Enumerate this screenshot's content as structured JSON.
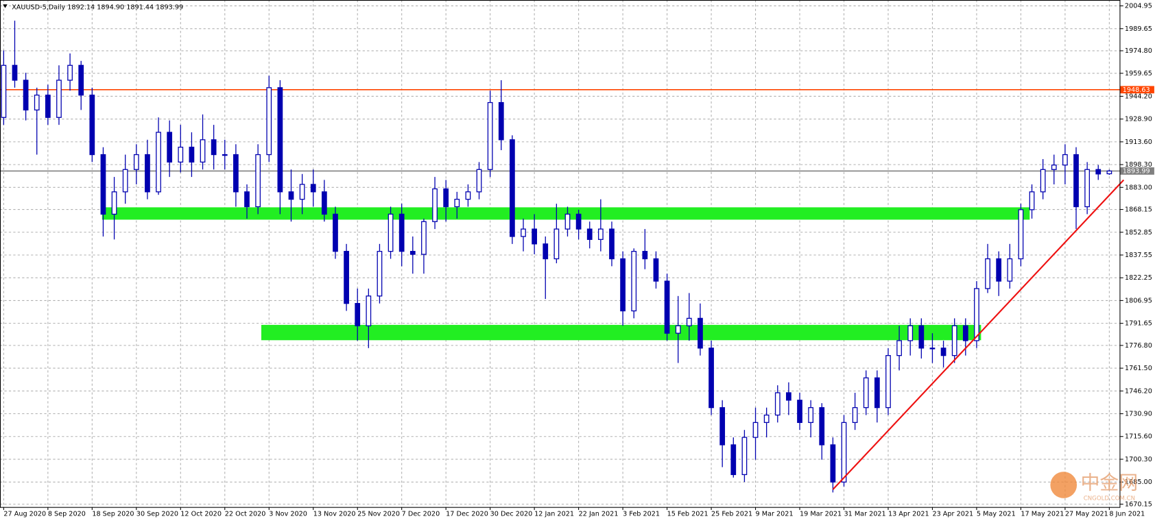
{
  "chart_data": {
    "type": "candlestick",
    "title": "XAUUSD-5,Daily  1892.14 1894.90 1891.44 1893.99",
    "bull_color": "#ffffff",
    "bear_color": "#0000b0",
    "wick_color": "#0000b0",
    "grid": true,
    "ylim": [
      1668.2,
      2008.9
    ],
    "yticks": [
      {
        "value": 2004.95,
        "label": "2004.95"
      },
      {
        "value": 1989.65,
        "label": "1989.65"
      },
      {
        "value": 1974.8,
        "label": "1974.80"
      },
      {
        "value": 1959.65,
        "label": "1959.65"
      },
      {
        "value": 1944.2,
        "label": "1944.20"
      },
      {
        "value": 1928.9,
        "label": "1928.90"
      },
      {
        "value": 1913.6,
        "label": "1913.60"
      },
      {
        "value": 1898.3,
        "label": "1898.30"
      },
      {
        "value": 1883,
        "label": "1883.00"
      },
      {
        "value": 1868.15,
        "label": "1868.15"
      },
      {
        "value": 1852.85,
        "label": "1852.85"
      },
      {
        "value": 1837.55,
        "label": "1837.55"
      },
      {
        "value": 1822.25,
        "label": "1822.25"
      },
      {
        "value": 1806.95,
        "label": "1806.95"
      },
      {
        "value": 1791.65,
        "label": "1791.65"
      },
      {
        "value": 1776.8,
        "label": "1776.80"
      },
      {
        "value": 1761.5,
        "label": "1761.50"
      },
      {
        "value": 1746.2,
        "label": "1746.20"
      },
      {
        "value": 1730.9,
        "label": "1730.90"
      },
      {
        "value": 1715.6,
        "label": "1715.60"
      },
      {
        "value": 1700.3,
        "label": "1700.30"
      },
      {
        "value": 1685,
        "label": "1685.00"
      },
      {
        "value": 1670.15,
        "label": "1670.15"
      }
    ],
    "categories": [
      "27 Aug 2020",
      null,
      null,
      null,
      "8 Sep 2020",
      null,
      null,
      null,
      "18 Sep 2020",
      null,
      null,
      null,
      "30 Sep 2020",
      null,
      null,
      null,
      "12 Oct 2020",
      null,
      null,
      null,
      "22 Oct 2020",
      null,
      null,
      null,
      "3 Nov 2020",
      null,
      null,
      null,
      "13 Nov 2020",
      null,
      null,
      null,
      "25 Nov 2020",
      null,
      null,
      null,
      "7 Dec 2020",
      null,
      null,
      null,
      "17 Dec 2020",
      null,
      null,
      null,
      "30 Dec 2020",
      null,
      null,
      null,
      "12 Jan 2021",
      null,
      null,
      null,
      "22 Jan 2021",
      null,
      null,
      null,
      "3 Feb 2021",
      null,
      null,
      null,
      "15 Feb 2021",
      null,
      null,
      null,
      "25 Feb 2021",
      null,
      null,
      null,
      "9 Mar 2021",
      null,
      null,
      null,
      "19 Mar 2021",
      null,
      null,
      null,
      "31 Mar 2021",
      null,
      null,
      null,
      "13 Apr 2021",
      null,
      null,
      null,
      "23 Apr 2021",
      null,
      null,
      null,
      "5 May 2021",
      null,
      null,
      null,
      "17 May 2021",
      null,
      null,
      null,
      "27 May 2021",
      null,
      null,
      null,
      "8 Jun 2021"
    ],
    "ohlc": [
      [
        1930,
        1975,
        1925,
        1965
      ],
      [
        1965,
        1995,
        1950,
        1955
      ],
      [
        1955,
        1960,
        1928,
        1935
      ],
      [
        1935,
        1950,
        1905,
        1945
      ],
      [
        1945,
        1952,
        1925,
        1930
      ],
      [
        1930,
        1965,
        1925,
        1955
      ],
      [
        1955,
        1973,
        1948,
        1965
      ],
      [
        1965,
        1968,
        1935,
        1945
      ],
      [
        1945,
        1950,
        1900,
        1905
      ],
      [
        1905,
        1910,
        1850,
        1865
      ],
      [
        1865,
        1890,
        1848,
        1880
      ],
      [
        1880,
        1905,
        1872,
        1895
      ],
      [
        1895,
        1912,
        1885,
        1905
      ],
      [
        1905,
        1915,
        1875,
        1880
      ],
      [
        1880,
        1930,
        1878,
        1920
      ],
      [
        1920,
        1928,
        1890,
        1900
      ],
      [
        1900,
        1925,
        1893,
        1910
      ],
      [
        1910,
        1920,
        1890,
        1900
      ],
      [
        1900,
        1932,
        1895,
        1915
      ],
      [
        1915,
        1925,
        1895,
        1905
      ],
      [
        1905,
        1915,
        1895,
        1905
      ],
      [
        1905,
        1912,
        1870,
        1880
      ],
      [
        1880,
        1885,
        1862,
        1870
      ],
      [
        1870,
        1912,
        1865,
        1905
      ],
      [
        1905,
        1958,
        1900,
        1950
      ],
      [
        1950,
        1955,
        1865,
        1880
      ],
      [
        1880,
        1895,
        1860,
        1875
      ],
      [
        1875,
        1892,
        1865,
        1885
      ],
      [
        1885,
        1895,
        1870,
        1880
      ],
      [
        1880,
        1888,
        1860,
        1865
      ],
      [
        1865,
        1870,
        1835,
        1840
      ],
      [
        1840,
        1845,
        1800,
        1805
      ],
      [
        1805,
        1815,
        1780,
        1790
      ],
      [
        1790,
        1815,
        1775,
        1810
      ],
      [
        1810,
        1845,
        1805,
        1840
      ],
      [
        1840,
        1870,
        1835,
        1865
      ],
      [
        1865,
        1872,
        1830,
        1840
      ],
      [
        1840,
        1850,
        1825,
        1838
      ],
      [
        1838,
        1862,
        1825,
        1860
      ],
      [
        1860,
        1890,
        1855,
        1882
      ],
      [
        1882,
        1888,
        1860,
        1870
      ],
      [
        1870,
        1880,
        1862,
        1875
      ],
      [
        1875,
        1885,
        1870,
        1880
      ],
      [
        1880,
        1900,
        1875,
        1895
      ],
      [
        1895,
        1948,
        1890,
        1940
      ],
      [
        1940,
        1955,
        1908,
        1915
      ],
      [
        1915,
        1918,
        1845,
        1850
      ],
      [
        1850,
        1862,
        1840,
        1855
      ],
      [
        1855,
        1865,
        1838,
        1845
      ],
      [
        1845,
        1850,
        1808,
        1835
      ],
      [
        1835,
        1872,
        1832,
        1855
      ],
      [
        1855,
        1870,
        1850,
        1865
      ],
      [
        1865,
        1868,
        1848,
        1855
      ],
      [
        1855,
        1860,
        1842,
        1848
      ],
      [
        1848,
        1875,
        1840,
        1855
      ],
      [
        1855,
        1860,
        1830,
        1835
      ],
      [
        1835,
        1840,
        1790,
        1800
      ],
      [
        1800,
        1842,
        1795,
        1840
      ],
      [
        1840,
        1855,
        1828,
        1835
      ],
      [
        1835,
        1840,
        1815,
        1820
      ],
      [
        1820,
        1825,
        1780,
        1785
      ],
      [
        1785,
        1810,
        1765,
        1790
      ],
      [
        1790,
        1812,
        1780,
        1795
      ],
      [
        1795,
        1805,
        1770,
        1775
      ],
      [
        1775,
        1780,
        1730,
        1735
      ],
      [
        1735,
        1740,
        1695,
        1710
      ],
      [
        1710,
        1715,
        1688,
        1690
      ],
      [
        1690,
        1720,
        1685,
        1715
      ],
      [
        1715,
        1735,
        1700,
        1725
      ],
      [
        1725,
        1735,
        1715,
        1730
      ],
      [
        1730,
        1750,
        1725,
        1745
      ],
      [
        1745,
        1752,
        1730,
        1740
      ],
      [
        1740,
        1745,
        1720,
        1725
      ],
      [
        1725,
        1740,
        1715,
        1735
      ],
      [
        1735,
        1738,
        1700,
        1710
      ],
      [
        1710,
        1715,
        1678,
        1685
      ],
      [
        1685,
        1730,
        1682,
        1725
      ],
      [
        1725,
        1745,
        1720,
        1735
      ],
      [
        1735,
        1760,
        1730,
        1755
      ],
      [
        1755,
        1760,
        1725,
        1735
      ],
      [
        1735,
        1775,
        1730,
        1770
      ],
      [
        1770,
        1790,
        1760,
        1780
      ],
      [
        1780,
        1795,
        1770,
        1790
      ],
      [
        1790,
        1795,
        1768,
        1775
      ],
      [
        1775,
        1785,
        1765,
        1775
      ],
      [
        1775,
        1780,
        1762,
        1770
      ],
      [
        1770,
        1795,
        1765,
        1790
      ],
      [
        1790,
        1795,
        1770,
        1780
      ],
      [
        1780,
        1820,
        1775,
        1815
      ],
      [
        1815,
        1845,
        1812,
        1835
      ],
      [
        1835,
        1840,
        1810,
        1820
      ],
      [
        1820,
        1845,
        1815,
        1835
      ],
      [
        1835,
        1872,
        1830,
        1868
      ],
      [
        1868,
        1885,
        1862,
        1880
      ],
      [
        1880,
        1902,
        1875,
        1895
      ],
      [
        1895,
        1905,
        1885,
        1898
      ],
      [
        1898,
        1912,
        1885,
        1905
      ],
      [
        1905,
        1910,
        1855,
        1870
      ],
      [
        1870,
        1900,
        1865,
        1895
      ],
      [
        1895,
        1898,
        1888,
        1892
      ],
      [
        1892.14,
        1894.9,
        1891.44,
        1893.99
      ]
    ],
    "levels": [
      {
        "value": 1948.63,
        "label": "1948.63",
        "color": "#ff4500"
      },
      {
        "value": 1893.99,
        "label": "1893.99",
        "color": "#808080"
      }
    ],
    "zones": [
      {
        "low": 1861.3,
        "high": 1869.6,
        "from": 8.9,
        "to": 92.8,
        "color": "#22ee22"
      },
      {
        "low": 1780.3,
        "high": 1790.6,
        "from": 23.3,
        "to": 88.4,
        "color": "#22ee22"
      }
    ],
    "trendline": {
      "from": [
        75,
        1680
      ],
      "to": [
        101.3,
        1888
      ],
      "color": "#ee1111"
    },
    "watermark": {
      "title": "中金网",
      "subtitle": "CNGOLD.COM.CN"
    }
  }
}
